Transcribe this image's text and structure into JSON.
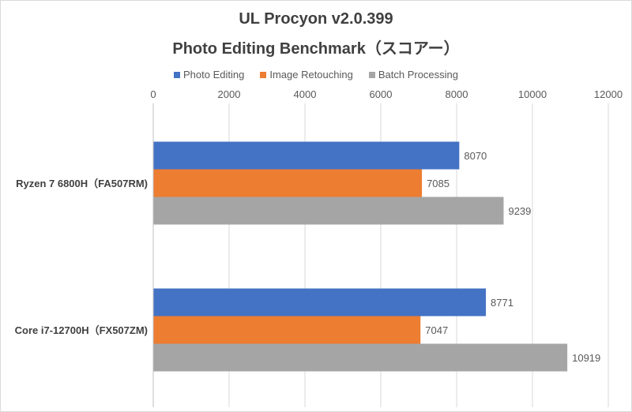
{
  "chart_data": {
    "type": "bar",
    "orientation": "horizontal",
    "title": "UL Procyon v2.0.399",
    "subtitle": "Photo Editing Benchmark（スコアー）",
    "categories": [
      "Ryzen 7 6800H（FA507RM)",
      "Core i7-12700H（FX507ZM)"
    ],
    "series": [
      {
        "name": "Photo Editing",
        "color": "#4472c4",
        "values": [
          8070,
          8771
        ]
      },
      {
        "name": "Image Retouching",
        "color": "#ed7d31",
        "values": [
          7085,
          7047
        ]
      },
      {
        "name": "Batch Processing",
        "color": "#a5a5a5",
        "values": [
          9239,
          10919
        ]
      }
    ],
    "xlim": [
      0,
      12000
    ],
    "xticks": [
      0,
      2000,
      4000,
      6000,
      8000,
      10000,
      12000
    ],
    "xaxis_position": "top",
    "legend": "top",
    "grid": true
  }
}
